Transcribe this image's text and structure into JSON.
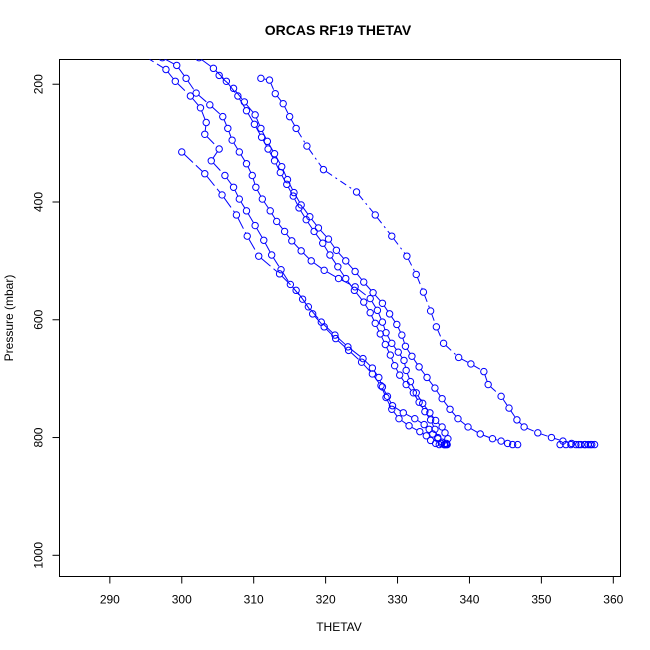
{
  "chart_data": {
    "type": "line",
    "title": "ORCAS RF19 THETAV",
    "xlabel": "THETAV",
    "ylabel": "Pressure (mbar)",
    "xlim": [
      283,
      361
    ],
    "ylim": [
      1036,
      158
    ],
    "y_reversed": true,
    "xticks": [
      290,
      300,
      310,
      320,
      330,
      340,
      350,
      360
    ],
    "yticks": [
      200,
      400,
      600,
      800,
      1000
    ],
    "grid": false,
    "legend": "none",
    "color": "#0000ff",
    "marker": "open-circle",
    "series": [
      {
        "points": [
          [
            294.5,
            150
          ],
          [
            297.8,
            175
          ],
          [
            299.1,
            195
          ],
          [
            301.2,
            220
          ],
          [
            302.6,
            240
          ],
          [
            303.4,
            265
          ],
          [
            303.2,
            285
          ],
          [
            305.2,
            310
          ],
          [
            304.1,
            330
          ],
          [
            306.0,
            355
          ],
          [
            307.2,
            375
          ],
          [
            308.0,
            395
          ],
          [
            309.0,
            415
          ],
          [
            310.2,
            440
          ],
          [
            311.4,
            465
          ],
          [
            312.5,
            490
          ],
          [
            313.8,
            515
          ],
          [
            315.1,
            540
          ],
          [
            316.8,
            565
          ],
          [
            318.2,
            590
          ],
          [
            319.8,
            612
          ],
          [
            321.4,
            632
          ],
          [
            323.2,
            652
          ],
          [
            325.0,
            672
          ],
          [
            326.5,
            692
          ],
          [
            327.7,
            712
          ],
          [
            328.4,
            732
          ],
          [
            329.2,
            752
          ],
          [
            330.2,
            768
          ],
          [
            331.6,
            780
          ],
          [
            333.1,
            790
          ],
          [
            334.0,
            797
          ],
          [
            334.6,
            805
          ],
          [
            335.3,
            810
          ],
          [
            335.8,
            812
          ],
          [
            336.5,
            812
          ],
          [
            336.9,
            812
          ]
        ]
      },
      {
        "points": [
          [
            300.0,
            315
          ],
          [
            303.2,
            352
          ],
          [
            305.6,
            388
          ],
          [
            307.6,
            422
          ],
          [
            309.1,
            458
          ],
          [
            310.7,
            492
          ],
          [
            313.6,
            522
          ],
          [
            315.9,
            550
          ],
          [
            317.6,
            578
          ],
          [
            319.4,
            604
          ],
          [
            321.3,
            626
          ],
          [
            323.1,
            646
          ],
          [
            325.2,
            666
          ],
          [
            326.5,
            682
          ],
          [
            327.4,
            698
          ],
          [
            327.9,
            714
          ],
          [
            328.6,
            730
          ],
          [
            329.3,
            746
          ],
          [
            330.8,
            758
          ],
          [
            332.4,
            768
          ],
          [
            333.7,
            778
          ],
          [
            334.4,
            786
          ],
          [
            334.9,
            794
          ],
          [
            335.6,
            802
          ],
          [
            336.2,
            808
          ],
          [
            336.8,
            812
          ]
        ]
      },
      {
        "points": [
          [
            297.3,
            155
          ],
          [
            299.3,
            168
          ],
          [
            300.6,
            190
          ],
          [
            302.0,
            215
          ],
          [
            303.9,
            235
          ],
          [
            305.7,
            255
          ],
          [
            306.4,
            275
          ],
          [
            307.0,
            295
          ],
          [
            308.0,
            315
          ],
          [
            309.0,
            335
          ],
          [
            309.8,
            355
          ],
          [
            310.3,
            375
          ],
          [
            311.2,
            395
          ],
          [
            312.3,
            415
          ],
          [
            313.2,
            433
          ],
          [
            314.3,
            450
          ],
          [
            315.3,
            466
          ],
          [
            316.6,
            483
          ],
          [
            318.0,
            500
          ],
          [
            319.8,
            516
          ],
          [
            321.8,
            530
          ],
          [
            324.1,
            544
          ],
          [
            326.2,
            564
          ],
          [
            327.2,
            584
          ],
          [
            327.9,
            604
          ],
          [
            328.4,
            622
          ],
          [
            329.2,
            640
          ],
          [
            330.1,
            655
          ],
          [
            330.9,
            669
          ],
          [
            331.2,
            686
          ],
          [
            331.8,
            705
          ],
          [
            332.6,
            724
          ],
          [
            333.5,
            742
          ],
          [
            334.5,
            758
          ],
          [
            335.3,
            771
          ],
          [
            336.2,
            782
          ],
          [
            336.6,
            792
          ],
          [
            337.0,
            802
          ],
          [
            336.8,
            810
          ],
          [
            336.6,
            812
          ]
        ]
      },
      {
        "points": [
          [
            302.4,
            155
          ],
          [
            304.4,
            173
          ],
          [
            306.2,
            195
          ],
          [
            307.8,
            220
          ],
          [
            309.0,
            245
          ],
          [
            310.1,
            268
          ],
          [
            311.1,
            290
          ],
          [
            312.0,
            310
          ],
          [
            312.9,
            330
          ],
          [
            313.7,
            350
          ],
          [
            314.6,
            370
          ],
          [
            315.5,
            390
          ],
          [
            316.3,
            410
          ],
          [
            317.3,
            430
          ],
          [
            318.4,
            450
          ],
          [
            319.6,
            470
          ],
          [
            320.6,
            490
          ],
          [
            321.7,
            510
          ],
          [
            322.8,
            530
          ],
          [
            324.0,
            550
          ],
          [
            325.3,
            570
          ],
          [
            326.2,
            588
          ],
          [
            326.9,
            606
          ],
          [
            327.6,
            624
          ],
          [
            328.3,
            642
          ],
          [
            329.0,
            660
          ],
          [
            329.6,
            678
          ],
          [
            330.3,
            694
          ],
          [
            331.2,
            710
          ],
          [
            332.2,
            724
          ],
          [
            333.0,
            740
          ],
          [
            333.8,
            756
          ],
          [
            334.6,
            770
          ],
          [
            335.2,
            786
          ],
          [
            335.6,
            800
          ],
          [
            336.1,
            810
          ],
          [
            336.5,
            812
          ]
        ]
      },
      {
        "points": [
          [
            305.2,
            185
          ],
          [
            307.2,
            207
          ],
          [
            308.7,
            230
          ],
          [
            310.2,
            252
          ],
          [
            311.0,
            275
          ],
          [
            311.9,
            297
          ],
          [
            312.9,
            318
          ],
          [
            313.9,
            340
          ],
          [
            314.7,
            362
          ],
          [
            315.6,
            384
          ],
          [
            316.6,
            405
          ],
          [
            317.8,
            425
          ],
          [
            319.0,
            444
          ],
          [
            320.4,
            463
          ],
          [
            321.5,
            482
          ],
          [
            322.8,
            500
          ],
          [
            324.1,
            518
          ],
          [
            325.3,
            536
          ],
          [
            326.6,
            554
          ],
          [
            327.9,
            572
          ],
          [
            328.9,
            590
          ],
          [
            329.9,
            608
          ],
          [
            330.6,
            626
          ],
          [
            331.1,
            645
          ],
          [
            332.0,
            662
          ],
          [
            333.0,
            680
          ],
          [
            334.1,
            698
          ],
          [
            335.2,
            716
          ],
          [
            336.2,
            734
          ],
          [
            337.3,
            752
          ],
          [
            338.4,
            768
          ],
          [
            339.8,
            782
          ],
          [
            341.5,
            794
          ],
          [
            343.2,
            802
          ],
          [
            344.4,
            806
          ],
          [
            345.3,
            810
          ],
          [
            346.0,
            812
          ],
          [
            346.7,
            812
          ]
        ]
      },
      {
        "points": [
          [
            311.0,
            190
          ],
          [
            312.2,
            193
          ],
          [
            313.0,
            216
          ],
          [
            314.1,
            233
          ],
          [
            315.0,
            255
          ],
          [
            315.9,
            275
          ],
          [
            317.4,
            305
          ],
          [
            319.7,
            345
          ],
          [
            324.3,
            383
          ],
          [
            326.9,
            422
          ],
          [
            329.2,
            458
          ],
          [
            331.3,
            492
          ],
          [
            332.6,
            523
          ],
          [
            333.6,
            553
          ],
          [
            334.6,
            585
          ],
          [
            335.4,
            612
          ],
          [
            336.4,
            640
          ],
          [
            338.5,
            664
          ],
          [
            340.2,
            675
          ],
          [
            342.0,
            688
          ],
          [
            342.6,
            710
          ],
          [
            344.4,
            730
          ],
          [
            345.5,
            750
          ],
          [
            346.6,
            770
          ],
          [
            347.6,
            782
          ],
          [
            349.5,
            792
          ],
          [
            351.4,
            800
          ],
          [
            353.0,
            806
          ],
          [
            354.2,
            810
          ],
          [
            355.2,
            812
          ],
          [
            356.1,
            812
          ],
          [
            356.8,
            812
          ]
        ]
      },
      {
        "points": [
          [
            352.6,
            812
          ],
          [
            353.4,
            812
          ],
          [
            354.1,
            812
          ],
          [
            354.8,
            812
          ],
          [
            355.5,
            812
          ],
          [
            356.0,
            812
          ],
          [
            356.5,
            812
          ],
          [
            357.0,
            812
          ],
          [
            357.4,
            812
          ]
        ]
      }
    ]
  }
}
